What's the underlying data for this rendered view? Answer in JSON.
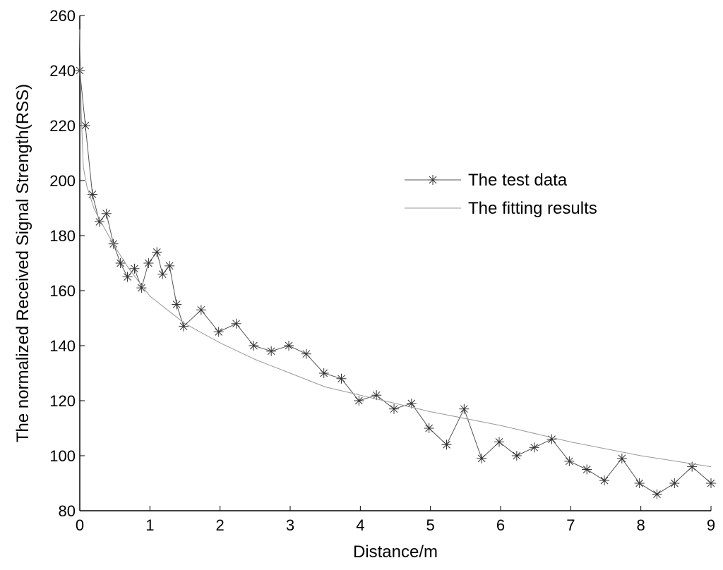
{
  "chart_data": {
    "type": "line",
    "title": "",
    "xlabel": "Distance/m",
    "ylabel": "The normalized Received Signal Strength(RSS)",
    "xlim": [
      0,
      9
    ],
    "ylim": [
      80,
      260
    ],
    "xticks": [
      0,
      1,
      2,
      3,
      4,
      5,
      6,
      7,
      8,
      9
    ],
    "yticks": [
      80,
      100,
      120,
      140,
      160,
      180,
      200,
      220,
      240,
      260
    ],
    "grid": false,
    "legend_position": "center-right",
    "series": [
      {
        "name": "The test data",
        "marker": "asterisk",
        "color": "#555555",
        "x": [
          0,
          0.08,
          0.18,
          0.28,
          0.38,
          0.48,
          0.58,
          0.68,
          0.78,
          0.88,
          0.98,
          1.1,
          1.18,
          1.28,
          1.38,
          1.48,
          1.73,
          1.98,
          2.23,
          2.48,
          2.73,
          2.98,
          3.23,
          3.48,
          3.73,
          3.98,
          4.23,
          4.48,
          4.73,
          4.98,
          5.23,
          5.48,
          5.73,
          5.98,
          6.23,
          6.48,
          6.73,
          6.98,
          7.23,
          7.48,
          7.73,
          7.98,
          8.23,
          8.48,
          8.73,
          9.0
        ],
        "y": [
          240,
          220,
          195,
          185,
          188,
          177,
          170,
          165,
          168,
          161,
          170,
          174,
          166,
          169,
          155,
          147,
          153,
          145,
          148,
          140,
          138,
          140,
          137,
          130,
          128,
          120,
          122,
          117,
          119,
          110,
          104,
          117,
          99,
          105,
          100,
          103,
          106,
          98,
          95,
          91,
          99,
          90,
          86,
          90,
          96,
          90
        ]
      },
      {
        "name": "The fitting results",
        "marker": "none",
        "color": "#999999",
        "x": [
          0,
          0.02,
          0.05,
          0.1,
          0.2,
          0.3,
          0.5,
          0.7,
          1.0,
          1.5,
          2.0,
          2.5,
          3.0,
          3.5,
          4.0,
          5.0,
          6.0,
          7.0,
          8.0,
          9.0
        ],
        "y": [
          255,
          225,
          205,
          198,
          190,
          185,
          176,
          168,
          158,
          148,
          141,
          135,
          130,
          125,
          122,
          116,
          111,
          105,
          100,
          96
        ]
      }
    ]
  }
}
